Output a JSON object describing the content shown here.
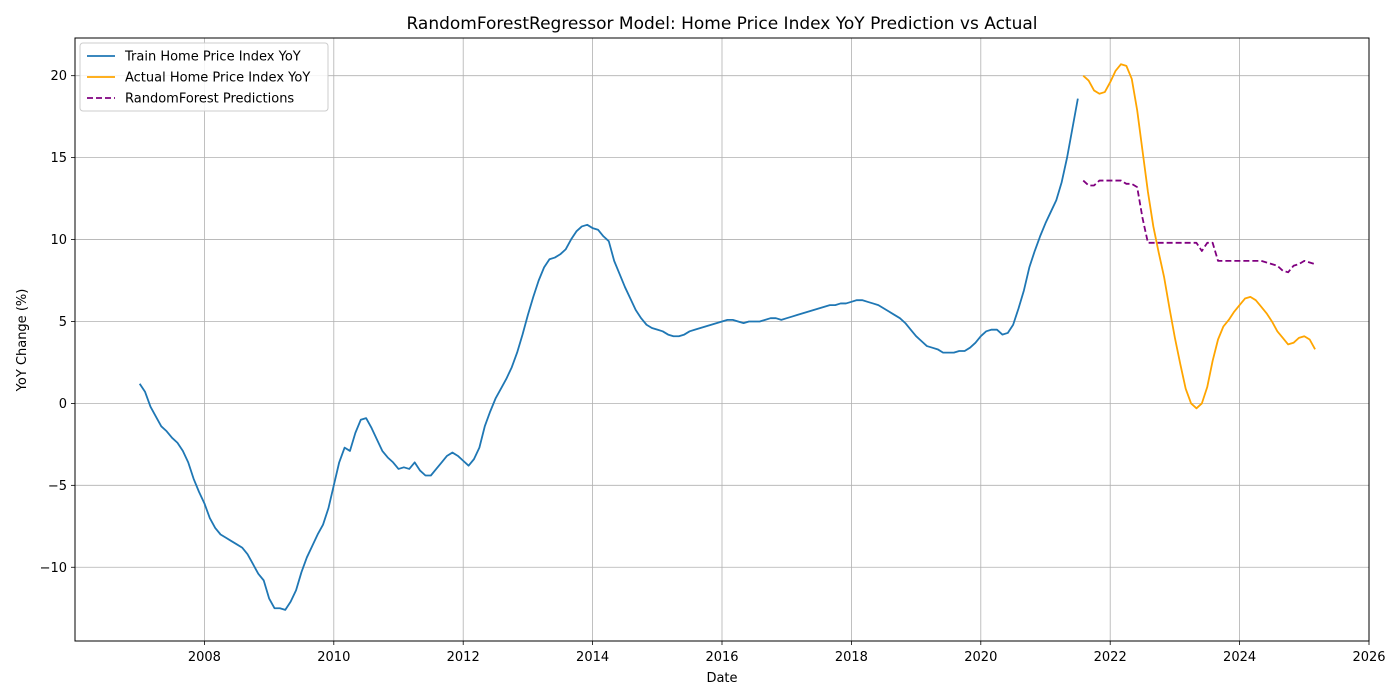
{
  "chart_data": {
    "type": "line",
    "title": "RandomForestRegressor Model: Home Price Index YoY Prediction vs Actual",
    "xlabel": "Date",
    "ylabel": "YoY Change (%)",
    "xlim": [
      "2006-01",
      "2026-01"
    ],
    "ylim": [
      -14.5,
      22.3
    ],
    "x_ticks": [
      "2008",
      "2010",
      "2012",
      "2014",
      "2016",
      "2018",
      "2020",
      "2022",
      "2024",
      "2026"
    ],
    "y_ticks": [
      -10,
      -5,
      0,
      5,
      10,
      15,
      20
    ],
    "y_tick_labels": [
      "−10",
      "−5",
      "0",
      "5",
      "10",
      "15",
      "20"
    ],
    "grid": true,
    "legend_position": "top-left",
    "series": [
      {
        "name": "Train Home Price Index YoY",
        "color": "#1f77b4",
        "style": "solid",
        "x": [
          "2007-01",
          "2007-02",
          "2007-03",
          "2007-04",
          "2007-05",
          "2007-06",
          "2007-07",
          "2007-08",
          "2007-09",
          "2007-10",
          "2007-11",
          "2007-12",
          "2008-01",
          "2008-02",
          "2008-03",
          "2008-04",
          "2008-05",
          "2008-06",
          "2008-07",
          "2008-08",
          "2008-09",
          "2008-10",
          "2008-11",
          "2008-12",
          "2009-01",
          "2009-02",
          "2009-03",
          "2009-04",
          "2009-05",
          "2009-06",
          "2009-07",
          "2009-08",
          "2009-09",
          "2009-10",
          "2009-11",
          "2009-12",
          "2010-01",
          "2010-02",
          "2010-03",
          "2010-04",
          "2010-05",
          "2010-06",
          "2010-07",
          "2010-08",
          "2010-09",
          "2010-10",
          "2010-11",
          "2010-12",
          "2011-01",
          "2011-02",
          "2011-03",
          "2011-04",
          "2011-05",
          "2011-06",
          "2011-07",
          "2011-08",
          "2011-09",
          "2011-10",
          "2011-11",
          "2011-12",
          "2012-01",
          "2012-02",
          "2012-03",
          "2012-04",
          "2012-05",
          "2012-06",
          "2012-07",
          "2012-08",
          "2012-09",
          "2012-10",
          "2012-11",
          "2012-12",
          "2013-01",
          "2013-02",
          "2013-03",
          "2013-04",
          "2013-05",
          "2013-06",
          "2013-07",
          "2013-08",
          "2013-09",
          "2013-10",
          "2013-11",
          "2013-12",
          "2014-01",
          "2014-02",
          "2014-03",
          "2014-04",
          "2014-05",
          "2014-06",
          "2014-07",
          "2014-08",
          "2014-09",
          "2014-10",
          "2014-11",
          "2014-12",
          "2015-01",
          "2015-02",
          "2015-03",
          "2015-04",
          "2015-05",
          "2015-06",
          "2015-07",
          "2015-08",
          "2015-09",
          "2015-10",
          "2015-11",
          "2015-12",
          "2016-01",
          "2016-02",
          "2016-03",
          "2016-04",
          "2016-05",
          "2016-06",
          "2016-07",
          "2016-08",
          "2016-09",
          "2016-10",
          "2016-11",
          "2016-12",
          "2017-01",
          "2017-02",
          "2017-03",
          "2017-04",
          "2017-05",
          "2017-06",
          "2017-07",
          "2017-08",
          "2017-09",
          "2017-10",
          "2017-11",
          "2017-12",
          "2018-01",
          "2018-02",
          "2018-03",
          "2018-04",
          "2018-05",
          "2018-06",
          "2018-07",
          "2018-08",
          "2018-09",
          "2018-10",
          "2018-11",
          "2018-12",
          "2019-01",
          "2019-02",
          "2019-03",
          "2019-04",
          "2019-05",
          "2019-06",
          "2019-07",
          "2019-08",
          "2019-09",
          "2019-10",
          "2019-11",
          "2019-12",
          "2020-01",
          "2020-02",
          "2020-03",
          "2020-04",
          "2020-05",
          "2020-06",
          "2020-07",
          "2020-08",
          "2020-09",
          "2020-10",
          "2020-11",
          "2020-12",
          "2021-01",
          "2021-02",
          "2021-03",
          "2021-04",
          "2021-05",
          "2021-06",
          "2021-07"
        ],
        "values": [
          1.2,
          0.7,
          -0.2,
          -0.8,
          -1.4,
          -1.7,
          -2.1,
          -2.4,
          -2.9,
          -3.6,
          -4.6,
          -5.4,
          -6.1,
          -7.0,
          -7.6,
          -8.0,
          -8.2,
          -8.4,
          -8.6,
          -8.8,
          -9.2,
          -9.8,
          -10.4,
          -10.8,
          -11.9,
          -12.5,
          -12.5,
          -12.6,
          -12.1,
          -11.4,
          -10.3,
          -9.4,
          -8.7,
          -8.0,
          -7.4,
          -6.4,
          -5.0,
          -3.6,
          -2.7,
          -2.9,
          -1.8,
          -1.0,
          -0.9,
          -1.5,
          -2.2,
          -2.9,
          -3.3,
          -3.6,
          -4.0,
          -3.9,
          -4.0,
          -3.6,
          -4.1,
          -4.4,
          -4.4,
          -4.0,
          -3.6,
          -3.2,
          -3.0,
          -3.2,
          -3.5,
          -3.8,
          -3.4,
          -2.7,
          -1.4,
          -0.5,
          0.3,
          0.9,
          1.5,
          2.2,
          3.1,
          4.2,
          5.4,
          6.5,
          7.5,
          8.3,
          8.8,
          8.9,
          9.1,
          9.4,
          10.0,
          10.5,
          10.8,
          10.9,
          10.7,
          10.6,
          10.2,
          9.9,
          8.7,
          7.9,
          7.1,
          6.4,
          5.7,
          5.2,
          4.8,
          4.6,
          4.5,
          4.4,
          4.2,
          4.1,
          4.1,
          4.2,
          4.4,
          4.5,
          4.6,
          4.7,
          4.8,
          4.9,
          5.0,
          5.1,
          5.1,
          5.0,
          4.9,
          5.0,
          5.0,
          5.0,
          5.1,
          5.2,
          5.2,
          5.1,
          5.2,
          5.3,
          5.4,
          5.5,
          5.6,
          5.7,
          5.8,
          5.9,
          6.0,
          6.0,
          6.1,
          6.1,
          6.2,
          6.3,
          6.3,
          6.2,
          6.1,
          6.0,
          5.8,
          5.6,
          5.4,
          5.2,
          4.9,
          4.5,
          4.1,
          3.8,
          3.5,
          3.4,
          3.3,
          3.1,
          3.1,
          3.1,
          3.2,
          3.2,
          3.4,
          3.7,
          4.1,
          4.4,
          4.5,
          4.5,
          4.2,
          4.3,
          4.8,
          5.8,
          6.9,
          8.3,
          9.3,
          10.2,
          11.0,
          11.7,
          12.4,
          13.5,
          15.0,
          16.8,
          18.6
        ]
      },
      {
        "name": "Actual Home Price Index YoY",
        "color": "#ffa500",
        "style": "solid",
        "x": [
          "2021-08",
          "2021-09",
          "2021-10",
          "2021-11",
          "2021-12",
          "2022-01",
          "2022-02",
          "2022-03",
          "2022-04",
          "2022-05",
          "2022-06",
          "2022-07",
          "2022-08",
          "2022-09",
          "2022-10",
          "2022-11",
          "2022-12",
          "2023-01",
          "2023-02",
          "2023-03",
          "2023-04",
          "2023-05",
          "2023-06",
          "2023-07",
          "2023-08",
          "2023-09",
          "2023-10",
          "2023-11",
          "2023-12",
          "2024-01",
          "2024-02",
          "2024-03",
          "2024-04",
          "2024-05",
          "2024-06",
          "2024-07",
          "2024-08",
          "2024-09",
          "2024-10",
          "2024-11",
          "2024-12",
          "2025-01",
          "2025-02",
          "2025-03"
        ],
        "values": [
          20.0,
          19.7,
          19.1,
          18.9,
          19.0,
          19.6,
          20.3,
          20.7,
          20.6,
          19.8,
          17.9,
          15.4,
          12.9,
          10.8,
          9.2,
          7.7,
          5.8,
          4.0,
          2.4,
          0.9,
          0.0,
          -0.3,
          0.0,
          1.0,
          2.6,
          3.9,
          4.7,
          5.1,
          5.6,
          6.0,
          6.4,
          6.5,
          6.3,
          5.9,
          5.5,
          5.0,
          4.4,
          4.0,
          3.6,
          3.7,
          4.0,
          4.1,
          3.9,
          3.3
        ]
      },
      {
        "name": "RandomForest Predictions",
        "color": "#800080",
        "style": "dashed",
        "x": [
          "2021-08",
          "2021-09",
          "2021-10",
          "2021-11",
          "2021-12",
          "2022-01",
          "2022-02",
          "2022-03",
          "2022-04",
          "2022-05",
          "2022-06",
          "2022-07",
          "2022-08",
          "2022-09",
          "2022-10",
          "2022-11",
          "2022-12",
          "2023-01",
          "2023-02",
          "2023-03",
          "2023-04",
          "2023-05",
          "2023-06",
          "2023-07",
          "2023-08",
          "2023-09",
          "2023-10",
          "2023-11",
          "2023-12",
          "2024-01",
          "2024-02",
          "2024-03",
          "2024-04",
          "2024-05",
          "2024-06",
          "2024-07",
          "2024-08",
          "2024-09",
          "2024-10",
          "2024-11",
          "2024-12",
          "2025-01",
          "2025-02",
          "2025-03"
        ],
        "values": [
          13.6,
          13.3,
          13.3,
          13.6,
          13.6,
          13.6,
          13.6,
          13.6,
          13.4,
          13.4,
          13.2,
          11.3,
          9.8,
          9.8,
          9.8,
          9.8,
          9.8,
          9.8,
          9.8,
          9.8,
          9.8,
          9.8,
          9.3,
          9.8,
          9.8,
          8.7,
          8.7,
          8.7,
          8.7,
          8.7,
          8.7,
          8.7,
          8.7,
          8.7,
          8.6,
          8.5,
          8.4,
          8.1,
          8.0,
          8.4,
          8.5,
          8.7,
          8.6,
          8.5
        ]
      }
    ]
  }
}
